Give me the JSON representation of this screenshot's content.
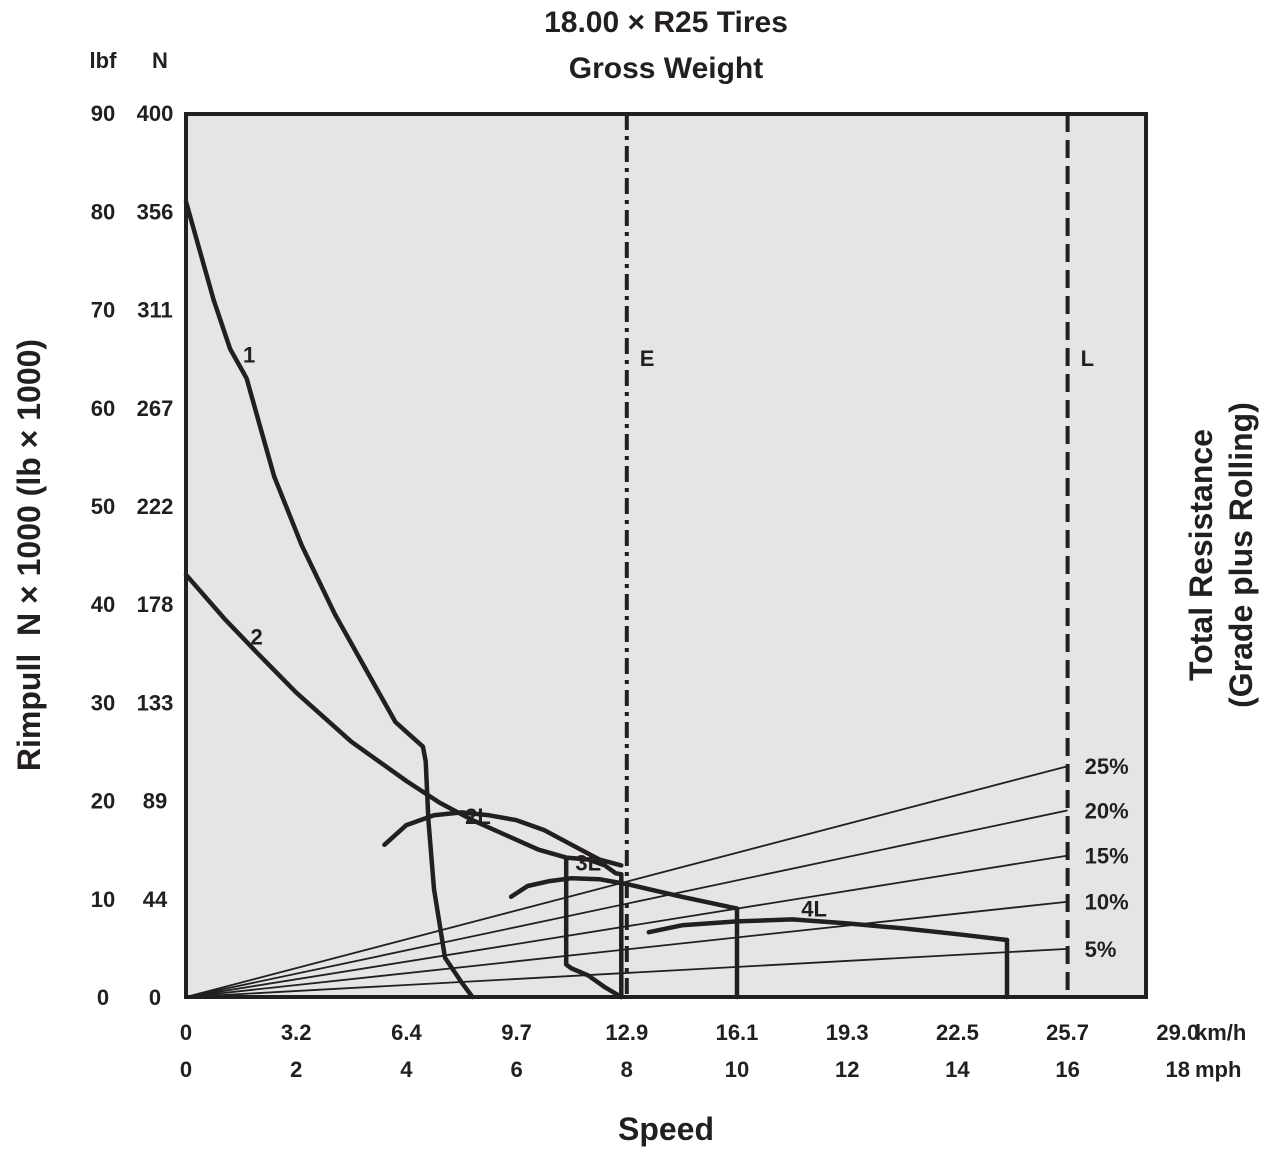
{
  "chart_data": {
    "type": "line",
    "title": [
      "18.00 × R25 Tires",
      "Gross Weight"
    ],
    "ylabel": "Rimpull  N × 1000 (lb × 1000)",
    "y2label": [
      "Total Resistance",
      "(Grade plus Rolling)"
    ],
    "xlabel": "Speed",
    "y_unit_headers": [
      "lbf",
      "N"
    ],
    "x_unit_labels": [
      "km/h",
      "mph"
    ],
    "x_mph_ticks": [
      "0",
      "2",
      "4",
      "6",
      "8",
      "10",
      "12",
      "14",
      "16",
      "18"
    ],
    "x_kmh_ticks": [
      "0",
      "3.2",
      "6.4",
      "9.7",
      "12.9",
      "16.1",
      "19.3",
      "22.5",
      "25.7",
      "29.0"
    ],
    "y_lbf_ticks": [
      "0",
      "10",
      "20",
      "30",
      "40",
      "50",
      "60",
      "70",
      "80",
      "90"
    ],
    "y_n_ticks": [
      "0",
      "44",
      "89",
      "133",
      "178",
      "222",
      "267",
      "311",
      "356",
      "400"
    ],
    "xlim_mph": [
      0,
      18.5
    ],
    "ylim_lbf": [
      0,
      90
    ],
    "series": [
      {
        "name": "1",
        "x": [
          0,
          0.2,
          0.5,
          0.8,
          1.0,
          1.1,
          1.3,
          1.6,
          2.1,
          2.7,
          3.3,
          3.8,
          4.1,
          4.3,
          4.35,
          4.4,
          4.5,
          4.7,
          5.0,
          5.2
        ],
        "y": [
          81,
          77,
          71,
          66,
          64,
          63,
          59,
          53,
          46,
          39,
          33,
          28,
          26.5,
          25.5,
          24,
          18,
          11,
          4,
          1.5,
          0
        ]
      },
      {
        "name": "2",
        "x": [
          0,
          0.7,
          1.3,
          2.0,
          3.0,
          4.0,
          4.6,
          5.2,
          5.8,
          6.4,
          6.9,
          7.3,
          7.6,
          7.8,
          7.9
        ],
        "y": [
          43,
          38.5,
          35,
          31,
          26,
          22,
          19.8,
          18,
          16.5,
          15,
          14.2,
          14,
          13.4,
          12.6,
          12.5
        ]
      },
      {
        "name": "2L",
        "x": [
          3.6,
          4.0,
          4.5,
          5.0,
          5.5,
          6.0,
          6.5,
          7.0,
          7.5,
          7.9
        ],
        "y": [
          15.5,
          17.5,
          18.5,
          18.8,
          18.5,
          18,
          17,
          15.5,
          14,
          13.4
        ]
      },
      {
        "name": "3L",
        "x": [
          5.9,
          6.2,
          6.6,
          7.0,
          7.5,
          8.0,
          9.0,
          10.0
        ],
        "y": [
          10.2,
          11.3,
          11.8,
          12.1,
          12.0,
          11.5,
          10.2,
          9
        ]
      },
      {
        "name": "4L",
        "x": [
          8.4,
          9.0,
          10.0,
          11.0,
          12.0,
          13.0,
          14.0,
          14.9
        ],
        "y": [
          6.6,
          7.3,
          7.7,
          7.9,
          7.5,
          7.0,
          6.4,
          5.8
        ]
      }
    ],
    "gear_cutoffs": [
      {
        "x": [
          7.9,
          7.9
        ],
        "y": [
          12.5,
          0
        ]
      },
      {
        "x": [
          6.9,
          6.9,
          7.0,
          7.3,
          7.6,
          7.9
        ],
        "y": [
          14,
          3.3,
          2.9,
          2.2,
          1,
          0
        ]
      },
      {
        "x": [
          10.0,
          10.0
        ],
        "y": [
          9,
          0
        ]
      },
      {
        "x": [
          14.9,
          14.9
        ],
        "y": [
          5.8,
          0
        ]
      }
    ],
    "vertical_lines": [
      {
        "label": "E",
        "x": 8.0,
        "style": "dash-dot"
      },
      {
        "label": "L",
        "x": 16.0,
        "style": "dashed"
      }
    ],
    "resistance_lines": [
      {
        "label": "25%",
        "end_y": 23.5
      },
      {
        "label": "20%",
        "end_y": 19
      },
      {
        "label": "15%",
        "end_y": 14.4
      },
      {
        "label": "10%",
        "end_y": 9.7
      },
      {
        "label": "5%",
        "end_y": 4.9
      }
    ]
  }
}
